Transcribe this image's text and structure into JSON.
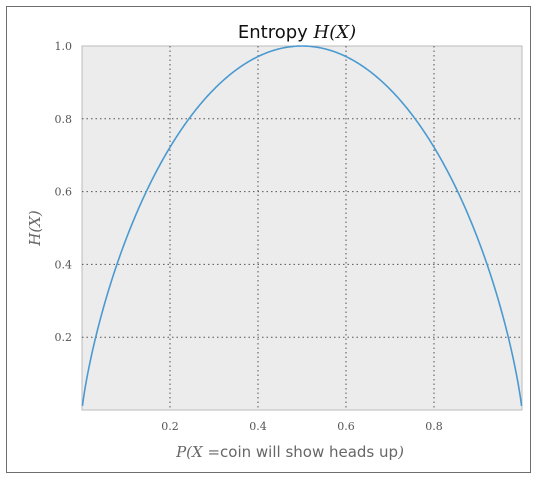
{
  "chart_data": {
    "type": "line",
    "title": {
      "prefix": "Entropy ",
      "math": "H(X)"
    },
    "xlabel": {
      "math_prefix": "P(X =",
      "text": "coin will show heads up",
      "math_suffix": ")"
    },
    "ylabel": "H(X)",
    "xlim": [
      0,
      1
    ],
    "ylim": [
      0,
      1
    ],
    "xticks": [
      0.2,
      0.4,
      0.6,
      0.8
    ],
    "xtick_labels": [
      "0.2",
      "0.4",
      "0.6",
      "0.8"
    ],
    "yticks": [
      0.2,
      0.4,
      0.6,
      0.8,
      1.0
    ],
    "ytick_labels": [
      "0.2",
      "0.4",
      "0.6",
      "0.8",
      "1.0"
    ],
    "grid": true,
    "series": [
      {
        "function": "binary_entropy",
        "x": [
          0.001,
          0.01,
          0.02,
          0.05,
          0.1,
          0.15,
          0.2,
          0.25,
          0.3,
          0.35,
          0.4,
          0.45,
          0.5,
          0.55,
          0.6,
          0.65,
          0.7,
          0.75,
          0.8,
          0.85,
          0.9,
          0.95,
          0.98,
          0.99,
          0.999
        ],
        "y": [
          0.011,
          0.081,
          0.141,
          0.286,
          0.469,
          0.61,
          0.722,
          0.811,
          0.881,
          0.934,
          0.971,
          0.993,
          1.0,
          0.993,
          0.971,
          0.934,
          0.881,
          0.811,
          0.722,
          0.61,
          0.469,
          0.286,
          0.141,
          0.081,
          0.011
        ]
      }
    ],
    "colors": {
      "line": "#4a9ad0",
      "plot_bg": "#ececec",
      "grid": "#555555"
    }
  }
}
